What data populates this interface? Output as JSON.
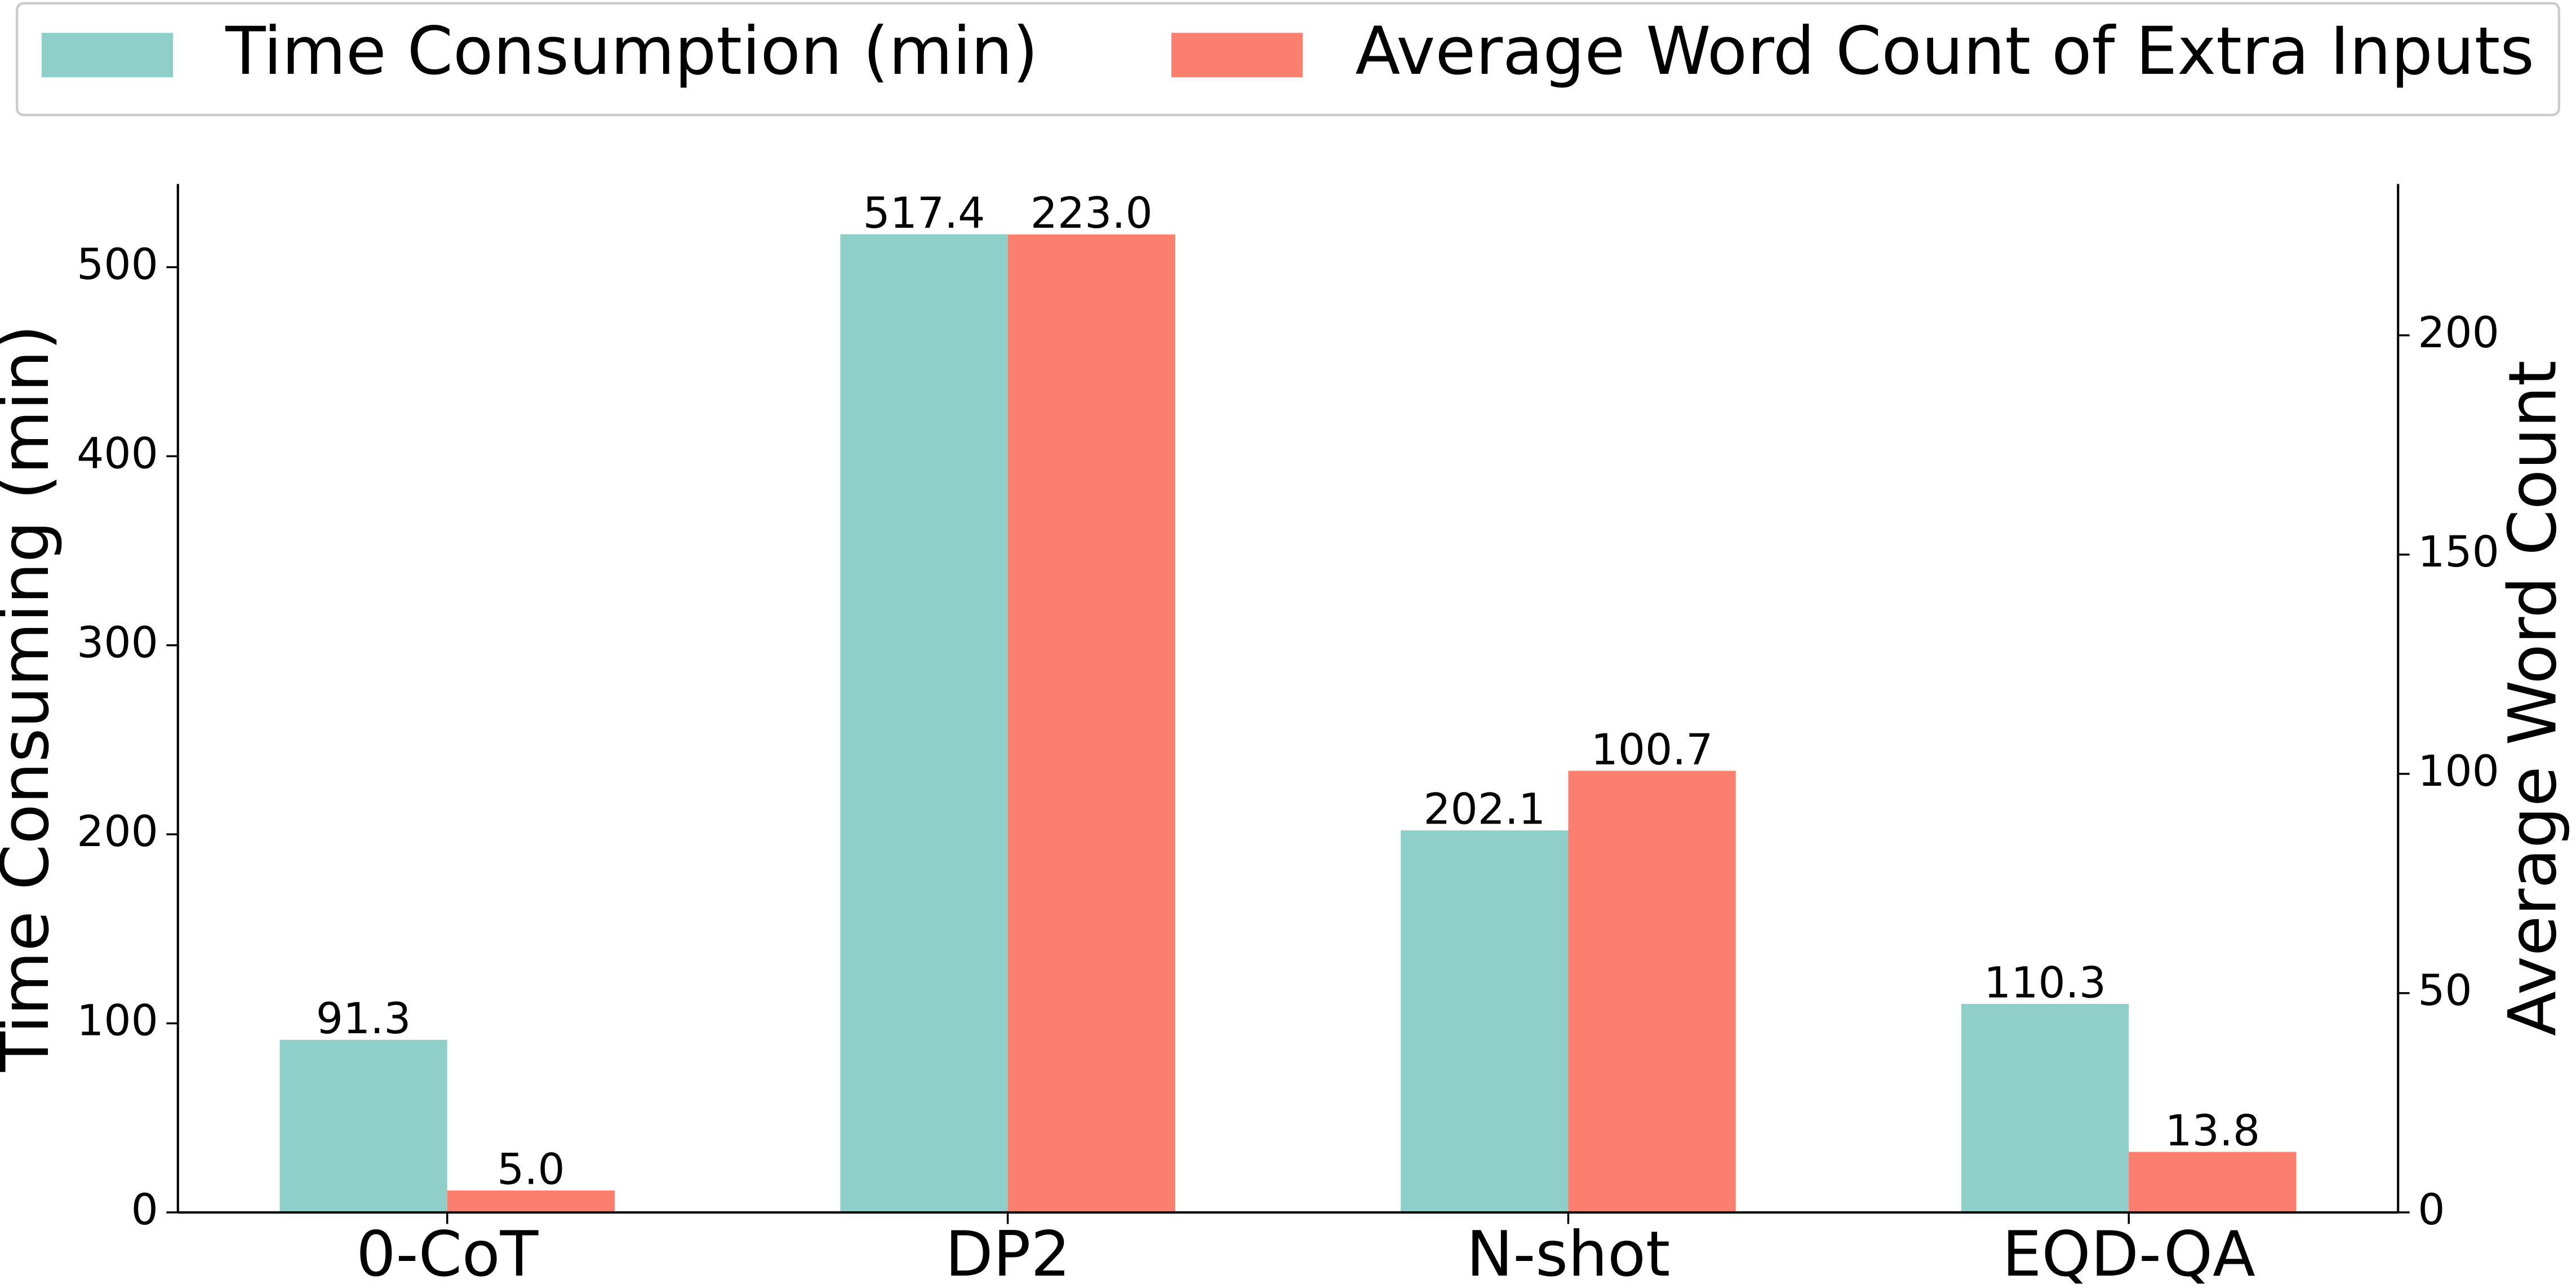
{
  "chart_data": {
    "type": "bar",
    "categories": [
      "0-CoT",
      "DP2",
      "N-shot",
      "EQD-QA"
    ],
    "ylabel": "Time Consuming (min)",
    "y2label": "Average Word Count",
    "ylim": [
      0,
      544
    ],
    "yticks": [
      0,
      100,
      200,
      300,
      400,
      500
    ],
    "y2lim": [
      0,
      234.5
    ],
    "y2ticks": [
      0,
      50,
      100,
      150,
      200
    ],
    "legend": "top",
    "series": [
      {
        "name": "Time Consumption (min)",
        "color": "#8ecfc9",
        "axis": "y",
        "values": [
          91.3,
          517.4,
          202.1,
          110.3
        ],
        "value_labels": [
          "91.3",
          "517.4",
          "202.1",
          "110.3"
        ]
      },
      {
        "name": "Average Word Count of Extra Inputs",
        "color": "#fa7f6f",
        "axis": "y2",
        "values": [
          5.0,
          223.0,
          100.7,
          13.8
        ],
        "value_labels": [
          "5.0",
          "223.0",
          "100.7",
          "13.8"
        ]
      }
    ]
  }
}
